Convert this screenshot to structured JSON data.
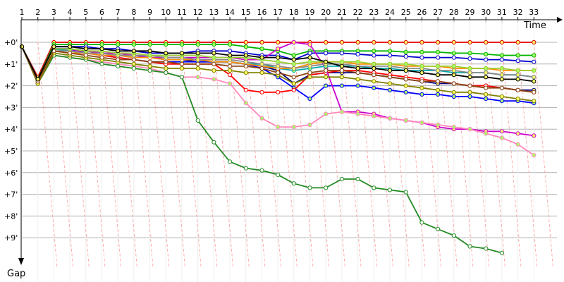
{
  "chart_data": {
    "type": "line",
    "title": "",
    "xlabel": "Time",
    "ylabel": "Gap",
    "x_ticks": [
      "1",
      "2",
      "3",
      "4",
      "5",
      "6",
      "7",
      "8",
      "9",
      "10",
      "11",
      "12",
      "13",
      "14",
      "15",
      "16",
      "17",
      "18",
      "19",
      "20",
      "21",
      "22",
      "23",
      "24",
      "25",
      "26",
      "27",
      "28",
      "29",
      "30",
      "31",
      "32",
      "33"
    ],
    "y_ticks": [
      "+0'",
      "+1'",
      "+2'",
      "+3'",
      "+4'",
      "+5'",
      "+6'",
      "+7'",
      "+8'",
      "+9'"
    ],
    "ylim": [
      0,
      10
    ],
    "xlim": [
      1,
      34
    ],
    "grid": "horizontal",
    "series": [
      {
        "name": "",
        "color": "#e00000",
        "values": [
          0.2,
          1.6,
          0,
          0,
          0,
          0,
          0,
          0,
          0,
          0,
          0,
          0,
          0,
          0,
          0,
          0,
          0,
          0,
          0,
          0,
          0,
          0,
          0,
          0,
          0,
          0,
          0,
          0,
          0,
          0,
          0,
          0,
          0
        ]
      },
      {
        "name": "",
        "color": "#00b400",
        "values": [
          0.2,
          1.7,
          0.1,
          0.1,
          0.1,
          0.1,
          0.1,
          0.1,
          0.1,
          0.1,
          0.1,
          0.1,
          0.1,
          0.1,
          0.2,
          0.3,
          0.4,
          0.6,
          0.4,
          0.4,
          0.4,
          0.4,
          0.4,
          0.4,
          0.45,
          0.45,
          0.45,
          0.5,
          0.5,
          0.55,
          0.6,
          0.6,
          0.6
        ]
      },
      {
        "name": "",
        "color": "#0000cc",
        "values": [
          0.2,
          1.7,
          0.2,
          0.2,
          0.2,
          0.3,
          0.3,
          0.4,
          0.5,
          0.5,
          0.5,
          0.4,
          0.4,
          0.4,
          0.5,
          0.6,
          0.6,
          0.8,
          0.5,
          0.5,
          0.5,
          0.55,
          0.6,
          0.6,
          0.65,
          0.7,
          0.7,
          0.7,
          0.75,
          0.8,
          0.8,
          0.85,
          0.9
        ]
      },
      {
        "name": "",
        "color": "#000080",
        "values": [
          0.2,
          1.8,
          0.3,
          0.3,
          0.4,
          0.5,
          0.6,
          0.6,
          0.7,
          0.8,
          0.8,
          0.9,
          0.9,
          0.9,
          1.0,
          1.1,
          1.3,
          1.9,
          1.5,
          1.4,
          1.4,
          1.4,
          1.5,
          1.6,
          1.7,
          1.8,
          1.9,
          1.9,
          2.0,
          2.0,
          2.1,
          2.2,
          2.2
        ]
      },
      {
        "name": "",
        "color": "#0000ff",
        "values": [
          0.2,
          1.8,
          0.3,
          0.3,
          0.5,
          0.6,
          0.7,
          0.8,
          0.9,
          0.9,
          0.9,
          0.9,
          0.9,
          0.9,
          1.0,
          1.2,
          1.6,
          2.1,
          2.6,
          2.0,
          2.0,
          2.0,
          2.1,
          2.2,
          2.3,
          2.4,
          2.4,
          2.5,
          2.5,
          2.6,
          2.7,
          2.7,
          2.8
        ]
      },
      {
        "name": "",
        "color": "#ff0000",
        "values": [
          0.2,
          1.8,
          0.3,
          0.4,
          0.5,
          0.6,
          0.7,
          0.8,
          0.9,
          1.0,
          1.0,
          1.0,
          1.0,
          1.5,
          2.2,
          2.3,
          2.3,
          2.2,
          1.5,
          1.4,
          1.3,
          1.3,
          1.4,
          1.5,
          1.6,
          1.7,
          1.8,
          1.9,
          2.0,
          2.0,
          2.1,
          2.2,
          2.3
        ]
      },
      {
        "name": "",
        "color": "#cc00cc",
        "values": [
          0.2,
          1.8,
          0.3,
          0.4,
          0.4,
          0.5,
          0.5,
          0.6,
          0.7,
          0.7,
          0.7,
          0.7,
          0.7,
          0.7,
          0.8,
          0.8,
          0.3,
          0.0,
          0.1,
          1.2,
          3.2,
          3.2,
          3.3,
          3.5,
          3.6,
          3.7,
          3.9,
          4.0,
          4.0,
          4.1,
          4.1,
          4.2,
          4.3
        ]
      },
      {
        "name": "",
        "color": "#ff88bb",
        "values": [
          0.2,
          1.9,
          0.6,
          0.7,
          0.8,
          0.9,
          1.0,
          1.1,
          1.2,
          1.4,
          1.6,
          1.6,
          1.7,
          1.9,
          2.8,
          3.5,
          3.9,
          3.9,
          3.8,
          3.3,
          3.2,
          3.3,
          3.4,
          3.5,
          3.6,
          3.7,
          3.8,
          3.9,
          4.0,
          4.2,
          4.4,
          4.7,
          5.2
        ]
      },
      {
        "name": "",
        "color": "#228b22",
        "values": [
          0.2,
          1.9,
          0.6,
          0.7,
          0.8,
          1.0,
          1.1,
          1.2,
          1.3,
          1.4,
          1.6,
          3.6,
          4.6,
          5.5,
          5.8,
          5.9,
          6.1,
          6.5,
          6.7,
          6.7,
          6.3,
          6.3,
          6.7,
          6.8,
          6.9,
          8.3,
          8.6,
          8.9,
          9.4,
          9.5,
          9.7
        ]
      },
      {
        "name": "",
        "color": "#808000",
        "values": [
          0.2,
          1.9,
          0.5,
          0.6,
          0.7,
          0.8,
          0.9,
          1.0,
          1.1,
          1.2,
          1.2,
          1.2,
          1.3,
          1.3,
          1.4,
          1.4,
          1.5,
          1.9,
          1.6,
          1.6,
          1.6,
          1.7,
          1.8,
          1.9,
          2.0,
          2.1,
          2.2,
          2.3,
          2.3,
          2.4,
          2.5,
          2.6,
          2.7
        ]
      },
      {
        "name": "",
        "color": "#00aaaa",
        "values": [
          0.2,
          1.7,
          0.3,
          0.4,
          0.5,
          0.5,
          0.6,
          0.7,
          0.7,
          0.8,
          0.8,
          0.8,
          0.9,
          0.9,
          1.0,
          1.0,
          1.2,
          1.3,
          1.2,
          1.1,
          1.1,
          1.1,
          1.2,
          1.2,
          1.3,
          1.3,
          1.3,
          1.4,
          1.4,
          1.4,
          1.5,
          1.5,
          1.6
        ]
      },
      {
        "name": "",
        "color": "#ff8c00",
        "values": [
          0.2,
          1.8,
          0.4,
          0.5,
          0.5,
          0.6,
          0.6,
          0.7,
          0.7,
          0.8,
          0.8,
          0.8,
          0.9,
          0.9,
          1.0,
          1.1,
          1.2,
          1.2,
          1.0,
          0.9,
          0.9,
          1.0,
          1.0,
          1.0,
          1.1,
          1.1,
          1.1,
          1.2,
          1.2,
          1.2,
          1.3,
          1.3,
          1.3
        ]
      },
      {
        "name": "",
        "color": "#888888",
        "values": [
          0.2,
          1.8,
          0.4,
          0.4,
          0.5,
          0.5,
          0.6,
          0.6,
          0.6,
          0.7,
          0.7,
          0.8,
          0.8,
          0.8,
          0.9,
          1.0,
          1.1,
          1.2,
          1.1,
          1.0,
          1.0,
          1.1,
          1.1,
          1.1,
          1.2,
          1.2,
          1.3,
          1.3,
          1.4,
          1.4,
          1.5,
          1.5,
          1.6
        ]
      },
      {
        "name": "",
        "color": "#9acd32",
        "values": [
          0.2,
          1.7,
          0.3,
          0.3,
          0.4,
          0.4,
          0.5,
          0.5,
          0.6,
          0.6,
          0.6,
          0.6,
          0.7,
          0.7,
          0.7,
          0.8,
          0.9,
          1.0,
          0.9,
          0.9,
          0.9,
          0.9,
          1.0,
          1.0,
          1.0,
          1.1,
          1.1,
          1.1,
          1.2,
          1.2,
          1.2,
          1.3,
          1.3
        ]
      },
      {
        "name": "",
        "color": "#8b4513",
        "values": [
          0.2,
          1.8,
          0.4,
          0.5,
          0.6,
          0.7,
          0.8,
          0.8,
          0.9,
          0.9,
          1.0,
          1.0,
          1.0,
          1.1,
          1.1,
          1.2,
          1.4,
          1.6,
          1.4,
          1.3,
          1.3,
          1.4,
          1.5,
          1.6,
          1.7,
          1.8,
          1.8,
          1.9,
          2.0,
          2.1,
          2.1,
          2.2,
          2.3
        ]
      },
      {
        "name": "",
        "color": "#000000",
        "values": [
          0.2,
          1.7,
          0.2,
          0.2,
          0.3,
          0.3,
          0.4,
          0.4,
          0.4,
          0.5,
          0.5,
          0.5,
          0.5,
          0.6,
          0.6,
          0.7,
          0.7,
          0.8,
          0.7,
          0.9,
          1.1,
          1.2,
          1.2,
          1.3,
          1.3,
          1.4,
          1.5,
          1.5,
          1.6,
          1.6,
          1.7,
          1.7,
          1.8
        ]
      }
    ]
  }
}
